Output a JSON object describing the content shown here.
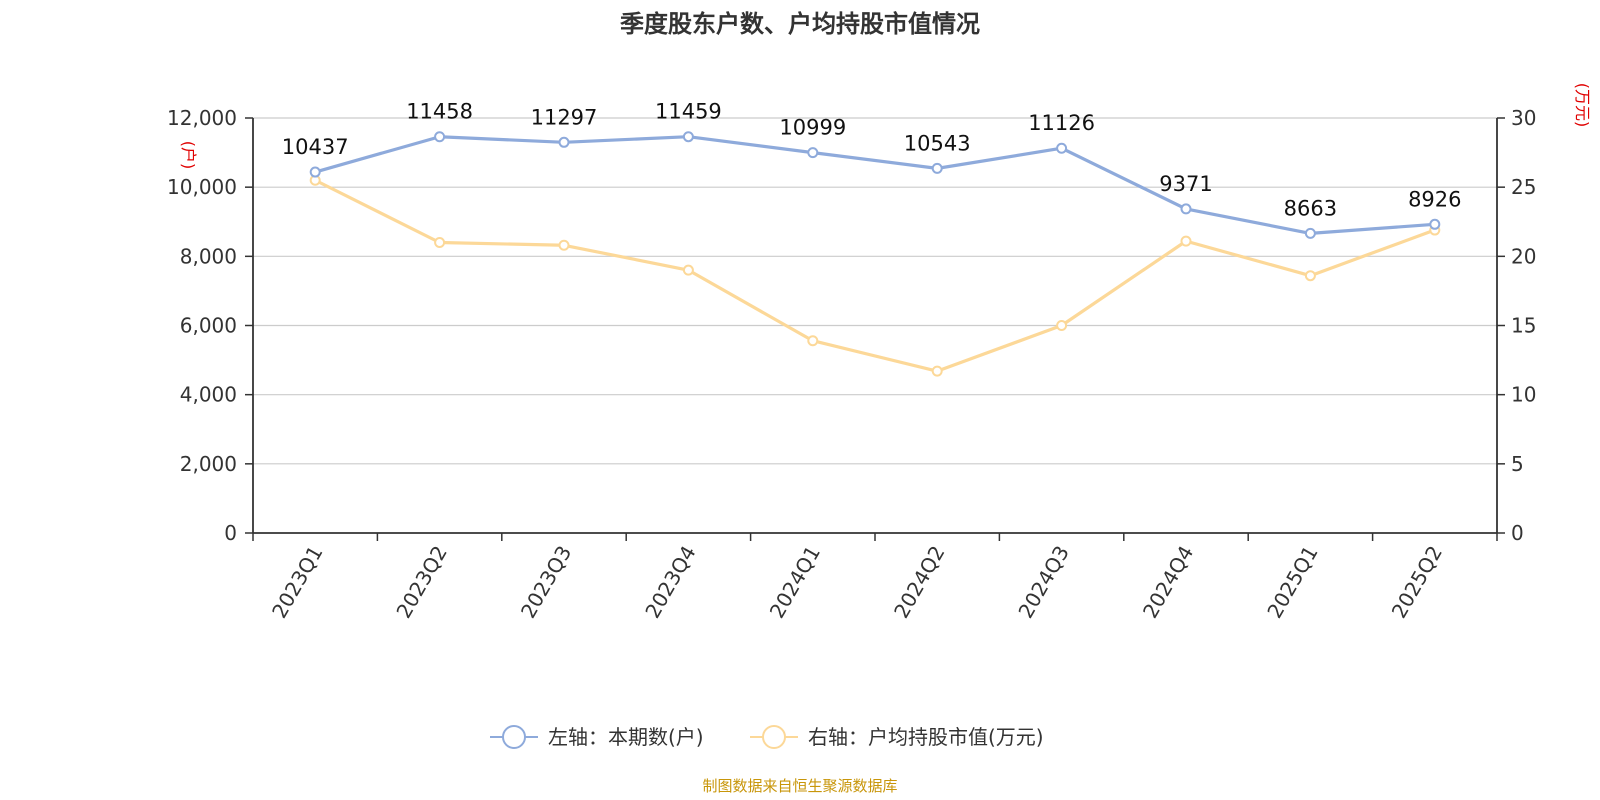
{
  "chart_data": {
    "type": "line",
    "title": "季度股东户数、户均持股市值情况",
    "categories": [
      "2023Q1",
      "2023Q2",
      "2023Q3",
      "2023Q4",
      "2024Q1",
      "2024Q2",
      "2024Q3",
      "2024Q4",
      "2025Q1",
      "2025Q2"
    ],
    "series": [
      {
        "name": "左轴：本期数(户)",
        "axis": "left",
        "color": "#8eaadb",
        "values": [
          10437,
          11458,
          11297,
          11459,
          10999,
          10543,
          11126,
          9371,
          8663,
          8926
        ],
        "data_labels": [
          "10437",
          "11458",
          "11297",
          "11459",
          "10999",
          "10543",
          "11126",
          "9371",
          "8663",
          "8926"
        ]
      },
      {
        "name": "右轴：户均持股市值(万元)",
        "axis": "right",
        "color": "#fcd898",
        "values": [
          25.5,
          21.0,
          20.8,
          19.0,
          13.9,
          11.7,
          15.0,
          21.1,
          18.6,
          21.9
        ]
      }
    ],
    "y_left": {
      "unit": "(户)",
      "ylim": [
        0,
        12000
      ],
      "ticks": [
        0,
        2000,
        4000,
        6000,
        8000,
        10000,
        12000
      ],
      "tick_labels": [
        "0",
        "2,000",
        "4,000",
        "6,000",
        "8,000",
        "10,000",
        "12,000"
      ]
    },
    "y_right": {
      "unit": "(万元)",
      "ylim": [
        0,
        30
      ],
      "ticks": [
        0,
        5,
        10,
        15,
        20,
        25,
        30
      ],
      "tick_labels": [
        "0",
        "5",
        "10",
        "15",
        "20",
        "25",
        "30"
      ]
    },
    "grid": true,
    "legend_position": "bottom-center"
  },
  "source": "制图数据来自恒生聚源数据库"
}
